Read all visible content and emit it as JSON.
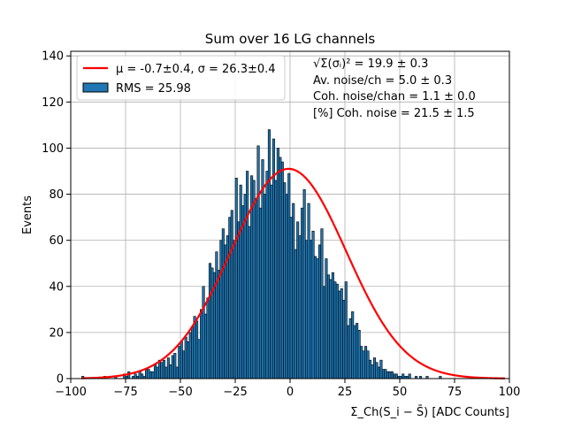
{
  "chart_data": {
    "type": "bar",
    "title": "Sum over 16 LG channels",
    "xlabel": "Σ_Ch(S_i − S̄) [ADC Counts]",
    "ylabel": "Events",
    "xlim": [
      -100,
      100
    ],
    "ylim": [
      0,
      142
    ],
    "xticks": [
      -100,
      -75,
      -50,
      -25,
      0,
      25,
      50,
      75,
      100
    ],
    "yticks": [
      0,
      20,
      40,
      60,
      80,
      100,
      120,
      140
    ],
    "grid": true,
    "legend_position": "top-left",
    "legend": {
      "fit_label": "μ = -0.7±0.4, σ = 26.3±0.4",
      "hist_label": "RMS = 25.98"
    },
    "annotations": [
      "√Σ(σᵢ)² = 19.9 ± 0.3",
      "Av. noise/ch = 5.0 ± 0.3",
      "Coh. noise/chan = 1.1 ± 0.0",
      "[%] Coh. noise = 21.5 ± 1.5"
    ],
    "colors": {
      "bars": "#1f77b4",
      "bar_edge": "#000000",
      "fit": "#ff0000",
      "grid": "#b0b0b0"
    },
    "histogram": {
      "bin_start": -95,
      "bin_width": 1,
      "counts": [
        1,
        0,
        0,
        0,
        0,
        0,
        0,
        0,
        0,
        0,
        1,
        0,
        0,
        0,
        0,
        1,
        0,
        0,
        0,
        2,
        1,
        3,
        0,
        1,
        2,
        1,
        3,
        2,
        1,
        4,
        4,
        3,
        3,
        6,
        5,
        8,
        7,
        8,
        5,
        9,
        6,
        10,
        11,
        5,
        14,
        16,
        12,
        18,
        16,
        20,
        22,
        27,
        25,
        17,
        30,
        40,
        28,
        35,
        50,
        48,
        46,
        55,
        47,
        60,
        65,
        58,
        62,
        70,
        73,
        60,
        87,
        68,
        84,
        75,
        80,
        90,
        66,
        88,
        86,
        78,
        101,
        74,
        95,
        80,
        90,
        108,
        84,
        104,
        86,
        100,
        96,
        94,
        85,
        80,
        89,
        70,
        76,
        56,
        68,
        62,
        74,
        82,
        60,
        76,
        60,
        64,
        53,
        52,
        58,
        65,
        40,
        52,
        45,
        43,
        46,
        42,
        41,
        38,
        39,
        34,
        42,
        23,
        26,
        29,
        23,
        24,
        21,
        14,
        12,
        14,
        12,
        8,
        6,
        9,
        7,
        5,
        8,
        4,
        4,
        3,
        3,
        3,
        2,
        2,
        1,
        1,
        2,
        1,
        1,
        2,
        0,
        0,
        1,
        0,
        1,
        0,
        0,
        1,
        0,
        0,
        0,
        0,
        0,
        1,
        0,
        0,
        0,
        0,
        0,
        0,
        0,
        0,
        0,
        0,
        0,
        0,
        0,
        0,
        0,
        0,
        0,
        0,
        0,
        0,
        0,
        0,
        0,
        0,
        0,
        0,
        0,
        0,
        0
      ]
    },
    "fit": {
      "mu": -0.7,
      "sigma": 26.3,
      "amplitude": 91,
      "x_range": [
        -95,
        98
      ]
    }
  }
}
